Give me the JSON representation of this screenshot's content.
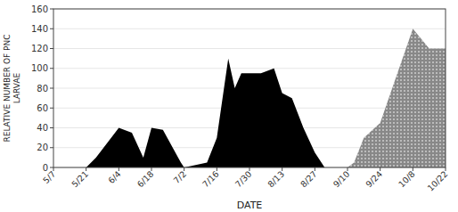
{
  "chart_data": {
    "type": "area",
    "xlabel": "DATE",
    "ylabel": "RELATIVE NUMBER OF PNC\nLARVAE",
    "xlim": [
      0,
      12
    ],
    "xticks": [
      {
        "value": 0,
        "label": "5/7"
      },
      {
        "value": 1,
        "label": "5/21"
      },
      {
        "value": 2,
        "label": "6/4"
      },
      {
        "value": 3,
        "label": "6/18"
      },
      {
        "value": 4,
        "label": "7/2"
      },
      {
        "value": 5,
        "label": "7/16"
      },
      {
        "value": 6,
        "label": "7/30"
      },
      {
        "value": 7,
        "label": "8/13"
      },
      {
        "value": 8,
        "label": "8/27"
      },
      {
        "value": 9,
        "label": "9/10"
      },
      {
        "value": 10,
        "label": "9/24"
      },
      {
        "value": 11,
        "label": "10/8"
      },
      {
        "value": 12,
        "label": "10/22"
      }
    ],
    "ylim": [
      0,
      160
    ],
    "yticks": [
      0,
      20,
      40,
      60,
      80,
      100,
      120,
      140,
      160
    ],
    "series": [
      {
        "color": "#000000",
        "x": [
          0,
          1.0,
          1.3,
          2.0,
          2.4,
          2.75,
          3.0,
          3.35,
          3.9,
          4.0,
          4.7,
          5.0,
          5.35,
          5.55,
          5.75,
          6.0,
          6.35,
          6.75,
          7.0,
          7.3,
          7.65,
          8.0,
          8.3,
          9.0,
          9.5,
          10.0
        ],
        "values": [
          0,
          0,
          10,
          40,
          35,
          10,
          40,
          38,
          5,
          0,
          5,
          30,
          110,
          80,
          95,
          95,
          95,
          100,
          75,
          70,
          40,
          15,
          0,
          0,
          0,
          0
        ]
      },
      {
        "color": "#888888",
        "x": [
          9.0,
          9.2,
          9.5,
          10.0,
          11.0,
          11.5,
          12.0,
          12.0
        ],
        "values": [
          0,
          5,
          30,
          45,
          140,
          120,
          120,
          0
        ]
      }
    ]
  }
}
